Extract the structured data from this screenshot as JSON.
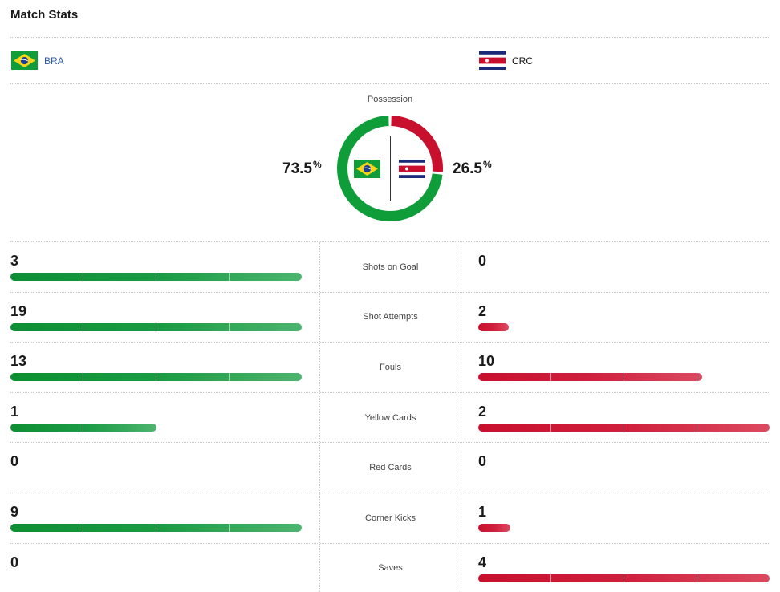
{
  "header": {
    "title": "Match Stats"
  },
  "teams": {
    "home": {
      "abbr": "BRA",
      "flag": "brazil-flag",
      "color": "#0f9d3a"
    },
    "away": {
      "abbr": "CRC",
      "flag": "costa-rica-flag",
      "color": "#c8102e"
    }
  },
  "possession": {
    "label": "Possession",
    "home_value": "73.5",
    "away_value": "26.5",
    "home_fraction": 0.735,
    "away_fraction": 0.265,
    "unit": "%"
  },
  "stats": [
    {
      "label": "Shots on Goal",
      "home": "3",
      "away": "0",
      "home_fraction": 1.0,
      "away_fraction": 0.0
    },
    {
      "label": "Shot Attempts",
      "home": "19",
      "away": "2",
      "home_fraction": 1.0,
      "away_fraction": 0.105
    },
    {
      "label": "Fouls",
      "home": "13",
      "away": "10",
      "home_fraction": 1.0,
      "away_fraction": 0.769
    },
    {
      "label": "Yellow Cards",
      "home": "1",
      "away": "2",
      "home_fraction": 0.5,
      "away_fraction": 1.0
    },
    {
      "label": "Red Cards",
      "home": "0",
      "away": "0",
      "home_fraction": 0.0,
      "away_fraction": 0.0
    },
    {
      "label": "Corner Kicks",
      "home": "9",
      "away": "1",
      "home_fraction": 1.0,
      "away_fraction": 0.111
    },
    {
      "label": "Saves",
      "home": "0",
      "away": "4",
      "home_fraction": 0.0,
      "away_fraction": 1.0
    }
  ]
}
